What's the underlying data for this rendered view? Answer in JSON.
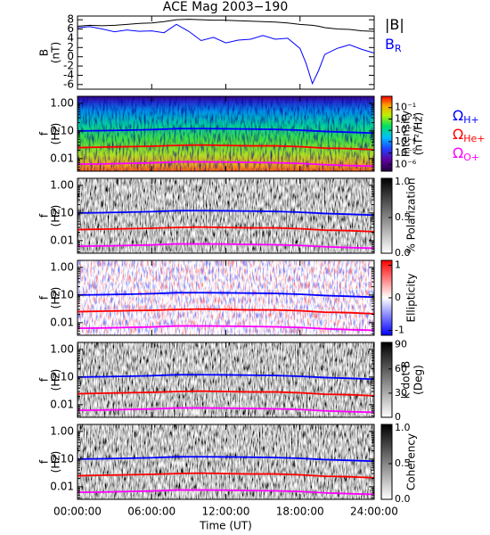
{
  "chart_data": [
    {
      "type": "line",
      "title": "ACE Mag 2003−190",
      "ylabel": "B",
      "yunit": "(nT)",
      "x": [
        0,
        1,
        2,
        3,
        4,
        5,
        6,
        7,
        8,
        9,
        10,
        11,
        12,
        13,
        14,
        15,
        16,
        17,
        18,
        18.5,
        19,
        19.5,
        20,
        21,
        22,
        23,
        24
      ],
      "xlim": [
        0,
        24
      ],
      "ylim": [
        -7,
        8.8
      ],
      "yticks": [
        8,
        6,
        4,
        2,
        0,
        -2,
        -4,
        -6
      ],
      "series": [
        {
          "name": "|B|",
          "color": "#000000",
          "values": [
            6.6,
            6.8,
            6.7,
            6.8,
            7.0,
            7.2,
            7.3,
            7.6,
            8.0,
            8.1,
            8.0,
            7.9,
            7.9,
            7.8,
            7.7,
            7.6,
            7.5,
            7.3,
            7.0,
            6.9,
            6.8,
            6.6,
            6.3,
            6.0,
            5.9,
            5.6,
            5.5
          ]
        },
        {
          "name": "B",
          "subscript": "R",
          "color": "#0000ff",
          "values": [
            6.3,
            6.5,
            6.0,
            5.4,
            5.8,
            5.5,
            5.6,
            5.2,
            7.0,
            5.5,
            3.5,
            4.2,
            3.0,
            3.6,
            3.8,
            4.6,
            3.8,
            4.0,
            1.8,
            -1.5,
            -5.8,
            -3.0,
            0.5,
            1.8,
            2.6,
            1.6,
            0.8
          ]
        }
      ]
    },
    {
      "type": "spectrogram",
      "ylabel": "f",
      "yunit": "(Hz)",
      "ylog": true,
      "x": [
        0,
        2,
        4,
        6,
        8,
        10,
        12,
        14,
        16,
        18,
        20,
        22,
        24
      ],
      "xlim": [
        0,
        24
      ],
      "ylim": [
        0.0035,
        1.8
      ],
      "yticks": [
        {
          "value": 1,
          "label": "1.00"
        },
        {
          "value": 0.1,
          "label": "0.10"
        },
        {
          "value": 0.01,
          "label": "0.01"
        }
      ],
      "colorbar": {
        "label": "Intensity",
        "unit": "(nT²/Hz)",
        "colormap": "rainbow",
        "zlog": true,
        "zlim": [
          2.5e-07,
          1
        ],
        "zticks": [
          {
            "value": 0.1,
            "label": "10⁻¹"
          },
          {
            "value": 0.01,
            "label": "10⁻²"
          },
          {
            "value": 0.001,
            "label": "10⁻³"
          },
          {
            "value": 0.0001,
            "label": "10⁻⁴"
          },
          {
            "value": 1e-05,
            "label": "10⁻⁵"
          },
          {
            "value": 1e-06,
            "label": "10⁻⁶"
          }
        ]
      },
      "series": [
        {
          "name": "Ω",
          "subscript": "H+",
          "color": "#0000ff",
          "values": [
            0.1,
            0.103,
            0.107,
            0.112,
            0.121,
            0.122,
            0.12,
            0.117,
            0.114,
            0.107,
            0.096,
            0.09,
            0.084
          ]
        },
        {
          "name": "Ω",
          "subscript": "He+",
          "color": "#ff0000",
          "values": [
            0.025,
            0.026,
            0.027,
            0.028,
            0.03,
            0.031,
            0.03,
            0.029,
            0.029,
            0.027,
            0.024,
            0.023,
            0.021
          ]
        },
        {
          "name": "Ω",
          "subscript": "O+",
          "color": "#ff00ff",
          "values": [
            0.0063,
            0.0064,
            0.0067,
            0.007,
            0.0076,
            0.0076,
            0.0075,
            0.0073,
            0.0071,
            0.0067,
            0.006,
            0.0056,
            0.0053
          ]
        }
      ]
    },
    {
      "type": "spectrogram",
      "ylabel": "f",
      "yunit": "(Hz)",
      "ylog": true,
      "x": [
        0,
        2,
        4,
        6,
        8,
        10,
        12,
        14,
        16,
        18,
        20,
        22,
        24
      ],
      "xlim": [
        0,
        24
      ],
      "ylim": [
        0.0035,
        1.8
      ],
      "yticks": [
        {
          "value": 1,
          "label": "1.00"
        },
        {
          "value": 0.1,
          "label": "0.10"
        },
        {
          "value": 0.01,
          "label": "0.01"
        }
      ],
      "colorbar": {
        "label": "% Polarization",
        "colormap": "gray_r",
        "zlim": [
          0,
          1.05
        ],
        "zticks": [
          {
            "value": 0,
            "label": "0.0"
          },
          {
            "value": 0.5,
            "label": "0.5"
          },
          {
            "value": 1,
            "label": "1.0"
          }
        ]
      },
      "series": [
        {
          "color": "#0000ff",
          "values": [
            0.1,
            0.103,
            0.107,
            0.112,
            0.121,
            0.122,
            0.12,
            0.117,
            0.114,
            0.107,
            0.096,
            0.09,
            0.084
          ]
        },
        {
          "color": "#ff0000",
          "values": [
            0.025,
            0.026,
            0.027,
            0.028,
            0.03,
            0.031,
            0.03,
            0.029,
            0.029,
            0.027,
            0.024,
            0.023,
            0.021
          ]
        },
        {
          "color": "#ff00ff",
          "values": [
            0.0063,
            0.0064,
            0.0067,
            0.007,
            0.0076,
            0.0076,
            0.0075,
            0.0073,
            0.0071,
            0.0067,
            0.006,
            0.0056,
            0.0053
          ]
        }
      ]
    },
    {
      "type": "spectrogram",
      "ylabel": "f",
      "yunit": "(Hz)",
      "ylog": true,
      "x": [
        0,
        2,
        4,
        6,
        8,
        10,
        12,
        14,
        16,
        18,
        20,
        22,
        24
      ],
      "xlim": [
        0,
        24
      ],
      "ylim": [
        0.0035,
        1.8
      ],
      "yticks": [
        {
          "value": 1,
          "label": "1.00"
        },
        {
          "value": 0.1,
          "label": "0.10"
        },
        {
          "value": 0.01,
          "label": "0.01"
        }
      ],
      "colorbar": {
        "label": "Ellipticity",
        "colormap": "bwr",
        "zlim": [
          -1.15,
          1.15
        ],
        "zticks": [
          -1,
          0,
          1
        ]
      },
      "series": [
        {
          "color": "#0000ff",
          "values": [
            0.1,
            0.103,
            0.107,
            0.112,
            0.121,
            0.122,
            0.12,
            0.117,
            0.114,
            0.107,
            0.096,
            0.09,
            0.084
          ]
        },
        {
          "color": "#ff0000",
          "values": [
            0.025,
            0.026,
            0.027,
            0.028,
            0.03,
            0.031,
            0.03,
            0.029,
            0.029,
            0.027,
            0.024,
            0.023,
            0.021
          ]
        },
        {
          "color": "#ff00ff",
          "values": [
            0.0063,
            0.0064,
            0.0067,
            0.007,
            0.0076,
            0.0076,
            0.0075,
            0.0073,
            0.0071,
            0.0067,
            0.006,
            0.0056,
            0.0053
          ]
        }
      ]
    },
    {
      "type": "spectrogram",
      "ylabel": "f",
      "yunit": "(Hz)",
      "ylog": true,
      "x": [
        0,
        2,
        4,
        6,
        8,
        10,
        12,
        14,
        16,
        18,
        20,
        22,
        24
      ],
      "xlim": [
        0,
        24
      ],
      "ylim": [
        0.0035,
        1.8
      ],
      "yticks": [
        {
          "value": 1,
          "label": "1.00"
        },
        {
          "value": 0.1,
          "label": "0.10"
        },
        {
          "value": 0.01,
          "label": "0.01"
        }
      ],
      "colorbar": {
        "label": "k dot B",
        "unit": "(Deg)",
        "colormap": "gray_r",
        "zlim": [
          0,
          93
        ],
        "zticks": [
          0,
          30,
          60,
          90
        ]
      },
      "series": [
        {
          "color": "#0000ff",
          "values": [
            0.1,
            0.103,
            0.107,
            0.112,
            0.121,
            0.122,
            0.12,
            0.117,
            0.114,
            0.107,
            0.096,
            0.09,
            0.084
          ]
        },
        {
          "color": "#ff0000",
          "values": [
            0.025,
            0.026,
            0.027,
            0.028,
            0.03,
            0.031,
            0.03,
            0.029,
            0.029,
            0.027,
            0.024,
            0.023,
            0.021
          ]
        },
        {
          "color": "#ff00ff",
          "values": [
            0.0063,
            0.0064,
            0.0067,
            0.007,
            0.0076,
            0.0076,
            0.0075,
            0.0073,
            0.0071,
            0.0067,
            0.006,
            0.0056,
            0.0053
          ]
        }
      ]
    },
    {
      "type": "spectrogram",
      "ylabel": "f",
      "yunit": "(Hz)",
      "ylog": true,
      "x": [
        0,
        2,
        4,
        6,
        8,
        10,
        12,
        14,
        16,
        18,
        20,
        22,
        24
      ],
      "xlim": [
        0,
        24
      ],
      "ylim": [
        0.0035,
        1.8
      ],
      "yticks": [
        {
          "value": 1,
          "label": "1.00"
        },
        {
          "value": 0.1,
          "label": "0.10"
        },
        {
          "value": 0.01,
          "label": "0.01"
        }
      ],
      "colorbar": {
        "label": "Coherency",
        "colormap": "gray_r",
        "zlim": [
          0,
          1.05
        ],
        "zticks": [
          {
            "value": 0,
            "label": "0.0"
          },
          {
            "value": 0.5,
            "label": "0.5"
          },
          {
            "value": 1,
            "label": "1.0"
          }
        ]
      },
      "xlabel": "Time (UT)",
      "xticks": [
        {
          "value": 0,
          "label": "00:00:00"
        },
        {
          "value": 6,
          "label": "06:00:00"
        },
        {
          "value": 12,
          "label": "12:00:00"
        },
        {
          "value": 18,
          "label": "18:00:00"
        },
        {
          "value": 24,
          "label": "24:00:00"
        }
      ],
      "series": [
        {
          "color": "#0000ff",
          "values": [
            0.1,
            0.103,
            0.107,
            0.112,
            0.121,
            0.122,
            0.12,
            0.117,
            0.114,
            0.107,
            0.096,
            0.09,
            0.084
          ]
        },
        {
          "color": "#ff0000",
          "values": [
            0.025,
            0.026,
            0.027,
            0.028,
            0.03,
            0.031,
            0.03,
            0.029,
            0.029,
            0.027,
            0.024,
            0.023,
            0.021
          ]
        },
        {
          "color": "#ff00ff",
          "values": [
            0.0063,
            0.0064,
            0.0067,
            0.007,
            0.0076,
            0.0076,
            0.0075,
            0.0073,
            0.0071,
            0.0067,
            0.006,
            0.0056,
            0.0053
          ]
        }
      ]
    }
  ]
}
